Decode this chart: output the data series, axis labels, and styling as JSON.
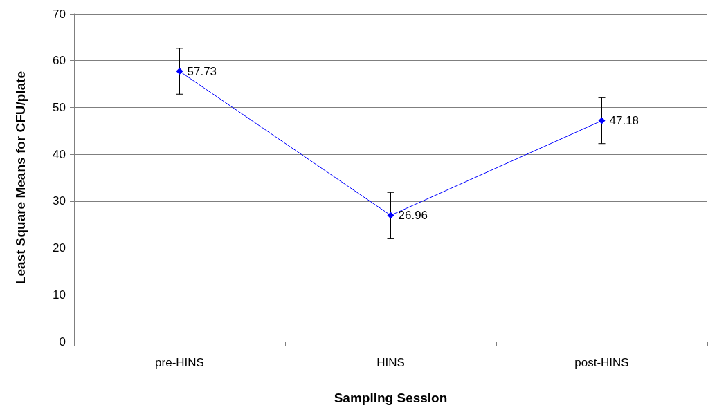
{
  "chart_data": {
    "type": "line",
    "xlabel": "Sampling Session",
    "ylabel": "Least Square Means for CFU/plate",
    "categories": [
      "pre-HINS",
      "HINS",
      "post-HINS"
    ],
    "series": [
      {
        "color": "#0000ff",
        "values": [
          57.73,
          26.96,
          47.18
        ],
        "errors": [
          4.9,
          4.9,
          4.9
        ]
      }
    ],
    "data_labels": true,
    "marker": "diamond",
    "line_style": "solid",
    "grid": "y",
    "ylim": [
      0,
      70
    ],
    "yticks": [
      0,
      10,
      20,
      30,
      40,
      50,
      60,
      70
    ]
  }
}
